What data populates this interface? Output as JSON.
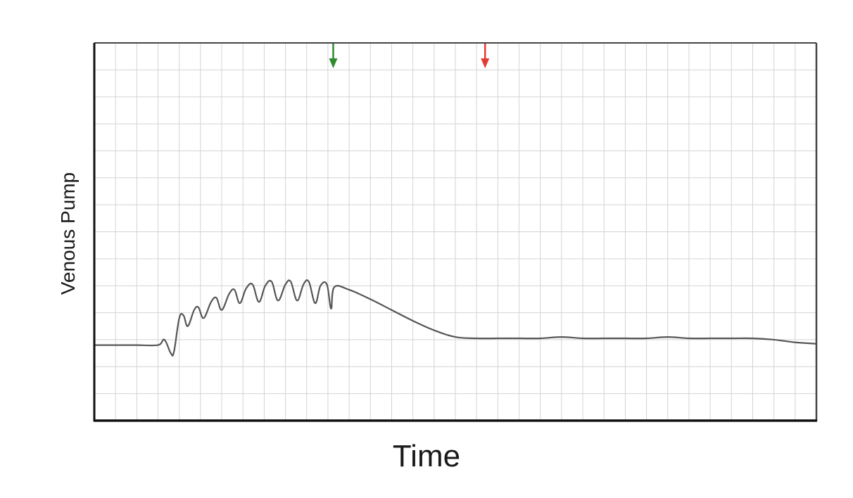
{
  "chart_data": {
    "type": "line",
    "title": "",
    "xlabel": "Time",
    "ylabel": "Venous Pump",
    "xlim": [
      0,
      34
    ],
    "ylim": [
      0,
      14
    ],
    "grid": true,
    "x_tick_labels": false,
    "y_tick_labels": false,
    "series": [
      {
        "color": "#555555",
        "points": [
          [
            0,
            2.8
          ],
          [
            1,
            2.8
          ],
          [
            2,
            2.8
          ],
          [
            3,
            2.8
          ],
          [
            3.3,
            3.0
          ],
          [
            3.6,
            2.5
          ],
          [
            3.75,
            2.55
          ],
          [
            4.0,
            3.8
          ],
          [
            4.2,
            3.9
          ],
          [
            4.4,
            3.5
          ],
          [
            4.7,
            4.1
          ],
          [
            4.9,
            4.2
          ],
          [
            5.15,
            3.8
          ],
          [
            5.5,
            4.4
          ],
          [
            5.75,
            4.55
          ],
          [
            6.0,
            4.1
          ],
          [
            6.35,
            4.7
          ],
          [
            6.6,
            4.85
          ],
          [
            6.85,
            4.35
          ],
          [
            7.15,
            4.9
          ],
          [
            7.45,
            5.05
          ],
          [
            7.75,
            4.4
          ],
          [
            8.05,
            5.0
          ],
          [
            8.35,
            5.15
          ],
          [
            8.65,
            4.45
          ],
          [
            9.0,
            5.05
          ],
          [
            9.25,
            5.15
          ],
          [
            9.55,
            4.45
          ],
          [
            9.85,
            5.05
          ],
          [
            10.1,
            5.15
          ],
          [
            10.4,
            4.35
          ],
          [
            10.65,
            5.0
          ],
          [
            10.95,
            5.05
          ],
          [
            11.15,
            4.15
          ],
          [
            11.3,
            4.95
          ],
          [
            12.0,
            4.85
          ],
          [
            13.0,
            4.5
          ],
          [
            14.0,
            4.1
          ],
          [
            15.0,
            3.7
          ],
          [
            16.0,
            3.35
          ],
          [
            17.0,
            3.1
          ],
          [
            18.0,
            3.05
          ],
          [
            19.0,
            3.05
          ],
          [
            20.0,
            3.05
          ],
          [
            21.0,
            3.05
          ],
          [
            22.0,
            3.1
          ],
          [
            23.0,
            3.05
          ],
          [
            24.0,
            3.05
          ],
          [
            25.0,
            3.05
          ],
          [
            26.0,
            3.05
          ],
          [
            27.0,
            3.1
          ],
          [
            28.0,
            3.05
          ],
          [
            29.0,
            3.05
          ],
          [
            30.0,
            3.05
          ],
          [
            31.0,
            3.05
          ],
          [
            32.0,
            3.0
          ],
          [
            33.0,
            2.9
          ],
          [
            34.0,
            2.85
          ]
        ]
      }
    ],
    "markers": [
      {
        "x": 11.25,
        "color": "#2e8b2e",
        "direction": "down"
      },
      {
        "x": 18.4,
        "color": "#e53935",
        "direction": "down"
      }
    ]
  }
}
